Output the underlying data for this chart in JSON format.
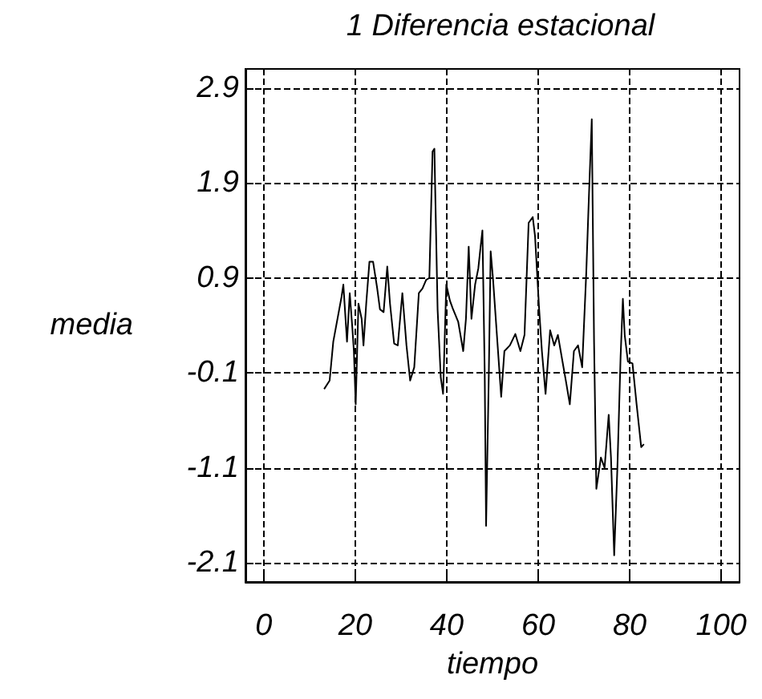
{
  "chart_data": {
    "type": "line",
    "title": "1 Diferencia estacional",
    "xlabel": "tiempo",
    "ylabel": "media",
    "xlim": [
      -4,
      104
    ],
    "xticks": [
      0,
      20,
      40,
      60,
      80,
      100
    ],
    "ylim": [
      -2.3,
      3.1
    ],
    "yticks": [
      -2.1,
      -1.1,
      -0.1,
      0.9,
      1.9,
      2.9
    ],
    "grid": true,
    "marker": "none",
    "line_style": "solid",
    "x": [
      13.2,
      14.4,
      15.2,
      17,
      17.4,
      18.2,
      18.8,
      19.4,
      19.7,
      20.1,
      20.7,
      21.4,
      21.8,
      22.4,
      23.1,
      23.9,
      24.8,
      25.4,
      26.2,
      27,
      27.6,
      28.5,
      29.3,
      30.3,
      31.2,
      32,
      32.9,
      33.9,
      34.7,
      35.5,
      36.2,
      36.9,
      37.3,
      38,
      38.7,
      39.2,
      39.9,
      40.7,
      41.3,
      42.5,
      43.6,
      44.2,
      44.8,
      45.4,
      46.2,
      46.9,
      47.4,
      47.8,
      48.3,
      48.6,
      49.2,
      49.6,
      50.1,
      51.9,
      52.6,
      53.8,
      55,
      56.1,
      57,
      57.9,
      58.8,
      59.3,
      60.2,
      60.8,
      61.6,
      62.6,
      63.5,
      64.3,
      65.3,
      66.1,
      66.9,
      67.8,
      68.7,
      69.6,
      70.5,
      71.1,
      71.7,
      72.2,
      72.7,
      73.7,
      74.5,
      75.4,
      75.9,
      76.6,
      77.3,
      78,
      78.5,
      78.9,
      79.6,
      80.6,
      81.5,
      82.5,
      83.1
    ],
    "series": [
      {
        "color": "#000000",
        "values": [
          -0.27,
          -0.18,
          0.23,
          0.7,
          0.83,
          0.23,
          0.74,
          0.35,
          0.13,
          -0.43,
          0.63,
          0.47,
          0.19,
          0.63,
          1.07,
          1.07,
          0.79,
          0.57,
          0.54,
          1.02,
          0.63,
          0.21,
          0.19,
          0.74,
          0.19,
          -0.18,
          -0.04,
          0.74,
          0.79,
          0.88,
          0.9,
          2.23,
          2.26,
          0.57,
          -0.15,
          -0.32,
          0.83,
          0.66,
          0.58,
          0.44,
          0.13,
          0.47,
          1.23,
          0.47,
          0.83,
          1.0,
          1.23,
          1.4,
          -0.1,
          -1.71,
          -0.1,
          1.18,
          0.9,
          -0.35,
          0.13,
          0.19,
          0.31,
          0.13,
          0.3,
          1.48,
          1.54,
          1.34,
          0.57,
          0.13,
          -0.32,
          0.35,
          0.19,
          0.3,
          0.02,
          -0.2,
          -0.43,
          0.13,
          0.19,
          -0.04,
          0.96,
          1.79,
          2.57,
          0.23,
          -1.32,
          -0.99,
          -1.1,
          -0.54,
          -0.99,
          -2.02,
          -1.1,
          0.07,
          0.68,
          0.3,
          0.02,
          0,
          -0.43,
          -0.88,
          -0.85
        ]
      }
    ]
  }
}
